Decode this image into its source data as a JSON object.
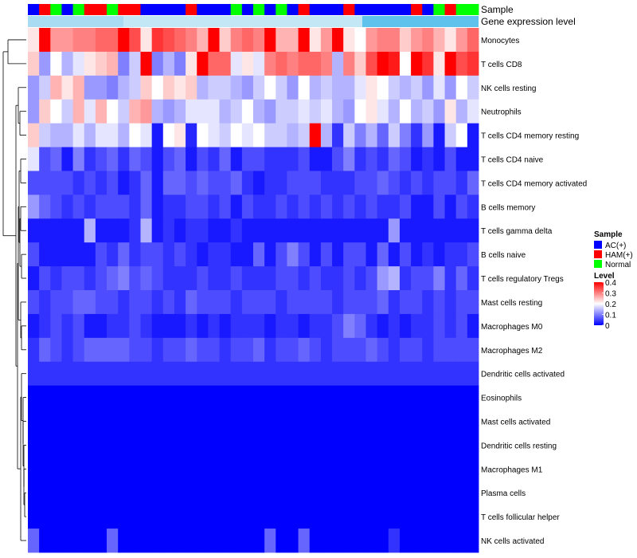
{
  "chart_data": {
    "type": "heatmap",
    "title": "",
    "annotation_tracks": [
      "Sample",
      "Gene expression level"
    ],
    "legend": {
      "sample_title": "Sample",
      "sample_entries": [
        {
          "name": "AC(+)",
          "color": "#0000ff"
        },
        {
          "name": "HAM(+)",
          "color": "#ff0000"
        },
        {
          "name": "Normal",
          "color": "#00ff00"
        }
      ],
      "level_title": "Level",
      "level_ticks": [
        "0.4",
        "0.3",
        "0.2",
        "0.1",
        "0"
      ],
      "level_range": [
        0,
        0.4
      ],
      "colors": {
        "low": "#0000ff",
        "mid": "#ffffff",
        "high": "#ff0000"
      }
    },
    "sample_groups": [
      "AC(+)",
      "HAM(+)",
      "Normal",
      "AC(+)",
      "Normal",
      "HAM(+)",
      "HAM(+)",
      "Normal",
      "HAM(+)",
      "HAM(+)",
      "AC(+)",
      "AC(+)",
      "AC(+)",
      "AC(+)",
      "HAM(+)",
      "AC(+)",
      "AC(+)",
      "AC(+)",
      "Normal",
      "AC(+)",
      "Normal",
      "AC(+)",
      "Normal",
      "AC(+)",
      "HAM(+)",
      "AC(+)",
      "AC(+)",
      "AC(+)",
      "HAM(+)",
      "AC(+)",
      "AC(+)",
      "AC(+)",
      "AC(+)",
      "AC(+)",
      "HAM(+)",
      "AC(+)",
      "Normal",
      "HAM(+)",
      "Normal",
      "Normal"
    ],
    "rows": [
      "Monocytes",
      "T cells CD8",
      "NK cells resting",
      "Neutrophils",
      "T cells CD4 memory resting",
      "T cells CD4 naive",
      "T cells CD4 memory activated",
      "B cells memory",
      "T cells gamma delta",
      "B cells naive",
      "T cells regulatory  Tregs",
      "Mast cells resting",
      "Macrophages M0",
      "Macrophages M2",
      "Dendritic cells activated",
      "Eosinophils",
      "Mast cells activated",
      "Dendritic cells resting",
      "Macrophages M1",
      "Plasma cells",
      "T cells follicular helper",
      "NK cells activated"
    ],
    "values": [
      [
        0.22,
        0.4,
        0.28,
        0.28,
        0.3,
        0.3,
        0.32,
        0.32,
        0.4,
        0.34,
        0.22,
        0.36,
        0.34,
        0.32,
        0.3,
        0.26,
        0.4,
        0.24,
        0.3,
        0.32,
        0.3,
        0.4,
        0.26,
        0.26,
        0.4,
        0.22,
        0.28,
        0.4,
        0.22,
        0.2,
        0.28,
        0.3,
        0.3,
        0.24,
        0.28,
        0.3,
        0.26,
        0.22,
        0.28,
        0.32
      ],
      [
        0.24,
        0.12,
        0.2,
        0.14,
        0.18,
        0.22,
        0.24,
        0.26,
        0.1,
        0.16,
        0.4,
        0.1,
        0.14,
        0.1,
        0.22,
        0.4,
        0.32,
        0.32,
        0.18,
        0.22,
        0.18,
        0.3,
        0.32,
        0.3,
        0.32,
        0.32,
        0.3,
        0.14,
        0.3,
        0.24,
        0.34,
        0.4,
        0.38,
        0.2,
        0.4,
        0.36,
        0.22,
        0.4,
        0.34,
        0.36
      ],
      [
        0.12,
        0.16,
        0.26,
        0.22,
        0.26,
        0.12,
        0.12,
        0.1,
        0.14,
        0.16,
        0.24,
        0.2,
        0.24,
        0.22,
        0.24,
        0.14,
        0.16,
        0.16,
        0.14,
        0.12,
        0.16,
        0.2,
        0.16,
        0.12,
        0.2,
        0.14,
        0.16,
        0.14,
        0.14,
        0.18,
        0.22,
        0.2,
        0.16,
        0.14,
        0.16,
        0.12,
        0.18,
        0.12,
        0.2,
        0.16
      ],
      [
        0.12,
        0.24,
        0.2,
        0.16,
        0.26,
        0.18,
        0.26,
        0.2,
        0.16,
        0.26,
        0.28,
        0.14,
        0.12,
        0.14,
        0.18,
        0.18,
        0.18,
        0.14,
        0.16,
        0.2,
        0.14,
        0.12,
        0.16,
        0.16,
        0.18,
        0.16,
        0.18,
        0.14,
        0.12,
        0.2,
        0.22,
        0.18,
        0.14,
        0.2,
        0.14,
        0.16,
        0.12,
        0.22,
        0.14,
        0.18
      ],
      [
        0.24,
        0.16,
        0.14,
        0.14,
        0.18,
        0.14,
        0.18,
        0.18,
        0.14,
        0.2,
        0.18,
        0.02,
        0.2,
        0.22,
        0.03,
        0.2,
        0.18,
        0.16,
        0.2,
        0.18,
        0.2,
        0.16,
        0.16,
        0.14,
        0.16,
        0.4,
        0.14,
        0.04,
        0.16,
        0.1,
        0.14,
        0.08,
        0.16,
        0.1,
        0.04,
        0.12,
        0.02,
        0.16,
        0.2,
        0.02
      ],
      [
        0.18,
        0.06,
        0.08,
        0.02,
        0.1,
        0.04,
        0.06,
        0.08,
        0.04,
        0.08,
        0.06,
        0.02,
        0.06,
        0.08,
        0.02,
        0.06,
        0.04,
        0.08,
        0.02,
        0.06,
        0.06,
        0.04,
        0.04,
        0.04,
        0.06,
        0.02,
        0.02,
        0.06,
        0.1,
        0.04,
        0.06,
        0.04,
        0.08,
        0.06,
        0.02,
        0.04,
        0.02,
        0.06,
        0.02,
        0.02
      ],
      [
        0.06,
        0.06,
        0.06,
        0.06,
        0.04,
        0.06,
        0.04,
        0.06,
        0.02,
        0.04,
        0.08,
        0.02,
        0.08,
        0.08,
        0.06,
        0.08,
        0.06,
        0.06,
        0.08,
        0.04,
        0.02,
        0.04,
        0.04,
        0.06,
        0.06,
        0.06,
        0.04,
        0.04,
        0.04,
        0.06,
        0.06,
        0.08,
        0.06,
        0.04,
        0.06,
        0.04,
        0.06,
        0.06,
        0.04,
        0.08
      ],
      [
        0.12,
        0.08,
        0.06,
        0.04,
        0.06,
        0.04,
        0.06,
        0.06,
        0.06,
        0.04,
        0.08,
        0.02,
        0.04,
        0.04,
        0.06,
        0.06,
        0.04,
        0.06,
        0.02,
        0.06,
        0.04,
        0.04,
        0.06,
        0.04,
        0.06,
        0.04,
        0.06,
        0.04,
        0.06,
        0.04,
        0.06,
        0.04,
        0.04,
        0.06,
        0.02,
        0.02,
        0.06,
        0.02,
        0.06,
        0.04
      ],
      [
        0.02,
        0.02,
        0.02,
        0.02,
        0.02,
        0.14,
        0.02,
        0.02,
        0.02,
        0.04,
        0.14,
        0.02,
        0.04,
        0.02,
        0.04,
        0.04,
        0.02,
        0.02,
        0.04,
        0.02,
        0.02,
        0.02,
        0.02,
        0.02,
        0.02,
        0.02,
        0.02,
        0.02,
        0.02,
        0.02,
        0.02,
        0.02,
        0.12,
        0.02,
        0.02,
        0.02,
        0.02,
        0.02,
        0.02,
        0.02
      ],
      [
        0.06,
        0.02,
        0.02,
        0.02,
        0.02,
        0.02,
        0.06,
        0.04,
        0.08,
        0.04,
        0.06,
        0.06,
        0.04,
        0.06,
        0.04,
        0.02,
        0.04,
        0.04,
        0.02,
        0.02,
        0.08,
        0.02,
        0.06,
        0.1,
        0.06,
        0.02,
        0.06,
        0.02,
        0.06,
        0.06,
        0.02,
        0.08,
        0.02,
        0.06,
        0.02,
        0.04,
        0.02,
        0.04,
        0.04,
        0.06
      ],
      [
        0.02,
        0.06,
        0.04,
        0.06,
        0.06,
        0.04,
        0.06,
        0.08,
        0.1,
        0.06,
        0.08,
        0.06,
        0.04,
        0.04,
        0.04,
        0.06,
        0.04,
        0.04,
        0.06,
        0.04,
        0.04,
        0.04,
        0.06,
        0.06,
        0.04,
        0.06,
        0.04,
        0.04,
        0.06,
        0.04,
        0.06,
        0.12,
        0.14,
        0.04,
        0.06,
        0.06,
        0.1,
        0.04,
        0.08,
        0.04
      ],
      [
        0.06,
        0.04,
        0.06,
        0.06,
        0.08,
        0.08,
        0.06,
        0.06,
        0.04,
        0.06,
        0.06,
        0.04,
        0.06,
        0.04,
        0.08,
        0.06,
        0.06,
        0.06,
        0.04,
        0.06,
        0.06,
        0.06,
        0.04,
        0.06,
        0.06,
        0.06,
        0.06,
        0.04,
        0.06,
        0.06,
        0.06,
        0.08,
        0.04,
        0.06,
        0.06,
        0.04,
        0.06,
        0.04,
        0.06,
        0.06
      ],
      [
        0.02,
        0.04,
        0.06,
        0.04,
        0.06,
        0.02,
        0.02,
        0.04,
        0.04,
        0.06,
        0.04,
        0.02,
        0.02,
        0.02,
        0.04,
        0.02,
        0.04,
        0.02,
        0.04,
        0.04,
        0.04,
        0.02,
        0.04,
        0.04,
        0.02,
        0.04,
        0.04,
        0.06,
        0.1,
        0.08,
        0.04,
        0.02,
        0.04,
        0.02,
        0.04,
        0.04,
        0.06,
        0.04,
        0.06,
        0.02
      ],
      [
        0.04,
        0.08,
        0.06,
        0.04,
        0.06,
        0.08,
        0.08,
        0.08,
        0.08,
        0.06,
        0.06,
        0.04,
        0.06,
        0.06,
        0.08,
        0.06,
        0.06,
        0.04,
        0.06,
        0.06,
        0.08,
        0.04,
        0.06,
        0.06,
        0.08,
        0.06,
        0.04,
        0.06,
        0.06,
        0.06,
        0.08,
        0.06,
        0.04,
        0.06,
        0.06,
        0.04,
        0.06,
        0.06,
        0.06,
        0.06
      ],
      [
        0.04,
        0.04,
        0.04,
        0.04,
        0.04,
        0.04,
        0.04,
        0.04,
        0.04,
        0.04,
        0.04,
        0.04,
        0.04,
        0.04,
        0.04,
        0.04,
        0.04,
        0.04,
        0.04,
        0.04,
        0.04,
        0.04,
        0.04,
        0.04,
        0.04,
        0.04,
        0.04,
        0.04,
        0.04,
        0.04,
        0.04,
        0.04,
        0.04,
        0.04,
        0.04,
        0.04,
        0.04,
        0.04,
        0.04,
        0.04
      ],
      [
        0,
        0,
        0,
        0,
        0,
        0,
        0,
        0,
        0,
        0,
        0,
        0,
        0,
        0,
        0,
        0,
        0,
        0,
        0,
        0,
        0,
        0,
        0,
        0,
        0,
        0,
        0,
        0,
        0,
        0,
        0,
        0,
        0,
        0,
        0,
        0,
        0,
        0,
        0,
        0
      ],
      [
        0,
        0,
        0,
        0,
        0,
        0,
        0,
        0,
        0,
        0,
        0,
        0,
        0,
        0,
        0,
        0,
        0,
        0,
        0,
        0,
        0,
        0,
        0,
        0,
        0,
        0,
        0,
        0,
        0,
        0,
        0,
        0,
        0,
        0,
        0,
        0,
        0,
        0,
        0,
        0
      ],
      [
        0,
        0,
        0,
        0,
        0,
        0,
        0,
        0,
        0,
        0,
        0,
        0,
        0,
        0,
        0,
        0,
        0,
        0,
        0,
        0,
        0,
        0,
        0,
        0,
        0,
        0,
        0,
        0,
        0,
        0,
        0,
        0,
        0,
        0,
        0,
        0,
        0,
        0,
        0,
        0
      ],
      [
        0,
        0,
        0,
        0,
        0,
        0,
        0,
        0,
        0,
        0,
        0,
        0,
        0,
        0,
        0,
        0,
        0,
        0,
        0,
        0,
        0,
        0,
        0,
        0,
        0,
        0,
        0,
        0,
        0,
        0,
        0,
        0,
        0,
        0,
        0,
        0,
        0,
        0,
        0,
        0
      ],
      [
        0,
        0,
        0,
        0,
        0,
        0,
        0,
        0,
        0,
        0,
        0,
        0,
        0,
        0,
        0,
        0,
        0,
        0,
        0,
        0,
        0,
        0,
        0,
        0,
        0,
        0,
        0,
        0,
        0,
        0,
        0,
        0,
        0,
        0,
        0,
        0,
        0,
        0,
        0,
        0
      ],
      [
        0,
        0,
        0,
        0,
        0,
        0,
        0,
        0,
        0,
        0,
        0,
        0,
        0,
        0,
        0,
        0,
        0,
        0,
        0,
        0,
        0,
        0,
        0,
        0,
        0,
        0,
        0,
        0,
        0,
        0,
        0,
        0,
        0,
        0,
        0,
        0,
        0,
        0,
        0,
        0
      ],
      [
        0.08,
        0,
        0,
        0,
        0,
        0,
        0,
        0.08,
        0,
        0,
        0,
        0,
        0,
        0,
        0,
        0,
        0,
        0,
        0,
        0,
        0,
        0.08,
        0,
        0,
        0.08,
        0,
        0,
        0,
        0,
        0,
        0,
        0,
        0.04,
        0,
        0,
        0,
        0,
        0,
        0,
        0
      ]
    ]
  }
}
